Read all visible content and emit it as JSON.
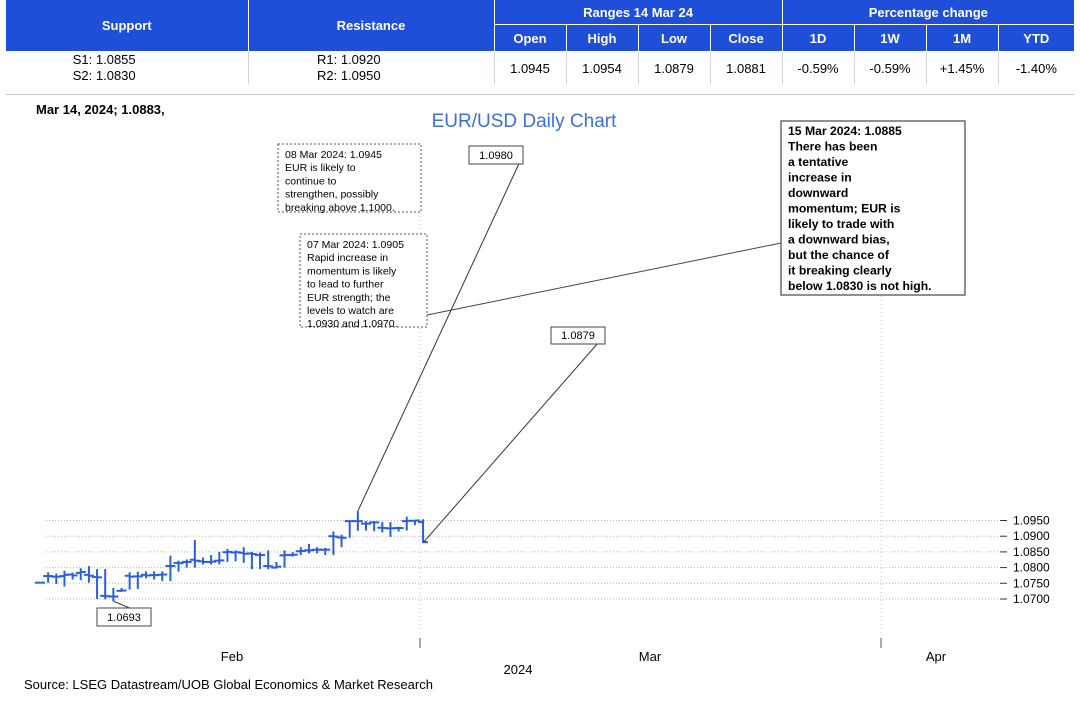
{
  "table": {
    "support_header": "Support",
    "resistance_header": "Resistance",
    "ranges_header": "Ranges 14 Mar 24",
    "pct_header": "Percentage change",
    "range_cols": [
      "Open",
      "High",
      "Low",
      "Close"
    ],
    "pct_cols": [
      "1D",
      "1W",
      "1M",
      "YTD"
    ],
    "support_lines": [
      "S1:  1.0855",
      "S2:  1.0830"
    ],
    "resistance_lines": [
      "R1:  1.0920",
      "R2:  1.0950"
    ],
    "range_values": [
      "1.0945",
      "1.0954",
      "1.0879",
      "1.0881"
    ],
    "pct_values": [
      "-0.59%",
      "-0.59%",
      "+1.45%",
      "-1.40%"
    ]
  },
  "chart_data": {
    "type": "ohlc",
    "title": "EUR/USD Daily Chart",
    "top_left_label": "Mar 14, 2024; 1.0883,",
    "source": "Source: LSEG Datastream/UOB Global Economics & Market Research",
    "ylim": [
      1.0675,
      1.1005
    ],
    "y_ticks": [
      "1.0700",
      "1.0750",
      "1.0800",
      "1.0850",
      "1.0900",
      "1.0950"
    ],
    "x_labels": [
      "Feb",
      "Mar",
      "Apr"
    ],
    "year_label": "2024",
    "bar_color": "#2b5de0",
    "grid": true,
    "bars": [
      {
        "o": 1.0752,
        "h": 1.0752,
        "l": 1.0752,
        "c": 1.0752
      },
      {
        "o": 1.0773,
        "h": 1.0785,
        "l": 1.0752,
        "c": 1.0773
      },
      {
        "o": 1.0771,
        "h": 1.0781,
        "l": 1.0748,
        "c": 1.0771
      },
      {
        "o": 1.0773,
        "h": 1.079,
        "l": 1.074,
        "c": 1.0777
      },
      {
        "o": 1.0778,
        "h": 1.0784,
        "l": 1.0762,
        "c": 1.0775
      },
      {
        "o": 1.0783,
        "h": 1.0798,
        "l": 1.076,
        "c": 1.0786
      },
      {
        "o": 1.0777,
        "h": 1.0805,
        "l": 1.0752,
        "c": 1.0774
      },
      {
        "o": 1.077,
        "h": 1.0795,
        "l": 1.07,
        "c": 1.0769
      },
      {
        "o": 1.071,
        "h": 1.0795,
        "l": 1.0699,
        "c": 1.0709
      },
      {
        "o": 1.0708,
        "h": 1.0735,
        "l": 1.0693,
        "c": 1.0708
      },
      {
        "o": 1.0726,
        "h": 1.0735,
        "l": 1.0723,
        "c": 1.0727
      },
      {
        "o": 1.0774,
        "h": 1.0785,
        "l": 1.073,
        "c": 1.0771
      },
      {
        "o": 1.0772,
        "h": 1.0787,
        "l": 1.0732,
        "c": 1.0772
      },
      {
        "o": 1.0777,
        "h": 1.0788,
        "l": 1.0766,
        "c": 1.0775
      },
      {
        "o": 1.0776,
        "h": 1.0788,
        "l": 1.0762,
        "c": 1.0776
      },
      {
        "o": 1.0777,
        "h": 1.0788,
        "l": 1.0757,
        "c": 1.0778
      },
      {
        "o": 1.0805,
        "h": 1.0838,
        "l": 1.0757,
        "c": 1.0805
      },
      {
        "o": 1.0815,
        "h": 1.0822,
        "l": 1.0787,
        "c": 1.0814
      },
      {
        "o": 1.0818,
        "h": 1.0826,
        "l": 1.08,
        "c": 1.0818
      },
      {
        "o": 1.0825,
        "h": 1.0888,
        "l": 1.08,
        "c": 1.0822
      },
      {
        "o": 1.082,
        "h": 1.0832,
        "l": 1.081,
        "c": 1.0818
      },
      {
        "o": 1.0818,
        "h": 1.084,
        "l": 1.081,
        "c": 1.0819
      },
      {
        "o": 1.0822,
        "h": 1.085,
        "l": 1.081,
        "c": 1.0823
      },
      {
        "o": 1.0849,
        "h": 1.086,
        "l": 1.0818,
        "c": 1.085
      },
      {
        "o": 1.0848,
        "h": 1.0855,
        "l": 1.082,
        "c": 1.0849
      },
      {
        "o": 1.0847,
        "h": 1.0865,
        "l": 1.0815,
        "c": 1.0844
      },
      {
        "o": 1.0845,
        "h": 1.085,
        "l": 1.0795,
        "c": 1.0843
      },
      {
        "o": 1.084,
        "h": 1.0848,
        "l": 1.0795,
        "c": 1.084
      },
      {
        "o": 1.0805,
        "h": 1.0855,
        "l": 1.0795,
        "c": 1.0804
      },
      {
        "o": 1.08,
        "h": 1.0818,
        "l": 1.0797,
        "c": 1.0803
      },
      {
        "o": 1.0839,
        "h": 1.0855,
        "l": 1.08,
        "c": 1.084
      },
      {
        "o": 1.084,
        "h": 1.0849,
        "l": 1.0835,
        "c": 1.0841
      },
      {
        "o": 1.0852,
        "h": 1.0865,
        "l": 1.084,
        "c": 1.0853
      },
      {
        "o": 1.0855,
        "h": 1.0875,
        "l": 1.0845,
        "c": 1.0855
      },
      {
        "o": 1.0857,
        "h": 1.0865,
        "l": 1.0845,
        "c": 1.0857
      },
      {
        "o": 1.0857,
        "h": 1.0863,
        "l": 1.084,
        "c": 1.0857
      },
      {
        "o": 1.09,
        "h": 1.0915,
        "l": 1.084,
        "c": 1.0899
      },
      {
        "o": 1.0896,
        "h": 1.0905,
        "l": 1.0865,
        "c": 1.0895
      },
      {
        "o": 1.0948,
        "h": 1.0948,
        "l": 1.0895,
        "c": 1.0948
      },
      {
        "o": 1.0948,
        "h": 1.098,
        "l": 1.0917,
        "c": 1.0948
      },
      {
        "o": 1.094,
        "h": 1.0948,
        "l": 1.0918,
        "c": 1.094
      },
      {
        "o": 1.0944,
        "h": 1.0948,
        "l": 1.0916,
        "c": 1.0944
      },
      {
        "o": 1.0927,
        "h": 1.0945,
        "l": 1.0912,
        "c": 1.0926
      },
      {
        "o": 1.0925,
        "h": 1.0945,
        "l": 1.0898,
        "c": 1.0925
      },
      {
        "o": 1.0926,
        "h": 1.093,
        "l": 1.0915,
        "c": 1.0926
      },
      {
        "o": 1.0948,
        "h": 1.0962,
        "l": 1.0918,
        "c": 1.0949
      },
      {
        "o": 1.0949,
        "h": 1.0952,
        "l": 1.0935,
        "c": 1.095
      },
      {
        "o": 1.0945,
        "h": 1.0954,
        "l": 1.0879,
        "c": 1.0881
      }
    ],
    "callouts": [
      {
        "text": "1.0980"
      },
      {
        "text": "1.0693"
      },
      {
        "text": "1.0879"
      }
    ],
    "notes": [
      {
        "lines": [
          "08 Mar 2024:  1.0945",
          "EUR is likely to",
          "continue to",
          "strengthen, possibly",
          "breaking above 1.1000."
        ]
      },
      {
        "lines": [
          "07 Mar 2024: 1.0905",
          "Rapid increase in",
          "momentum is likely",
          "to lead to further",
          "EUR strength; the",
          "levels to watch are",
          "1.0930 and 1.0970."
        ]
      },
      {
        "lines": [
          "15 Mar 2024: 1.0885",
          "There has been",
          "a tentative",
          "increase in",
          "downward",
          "momentum; EUR is",
          "likely to trade with",
          "a downward bias,",
          "but the chance of",
          "it breaking clearly",
          "below 1.0830 is not high."
        ]
      }
    ]
  }
}
